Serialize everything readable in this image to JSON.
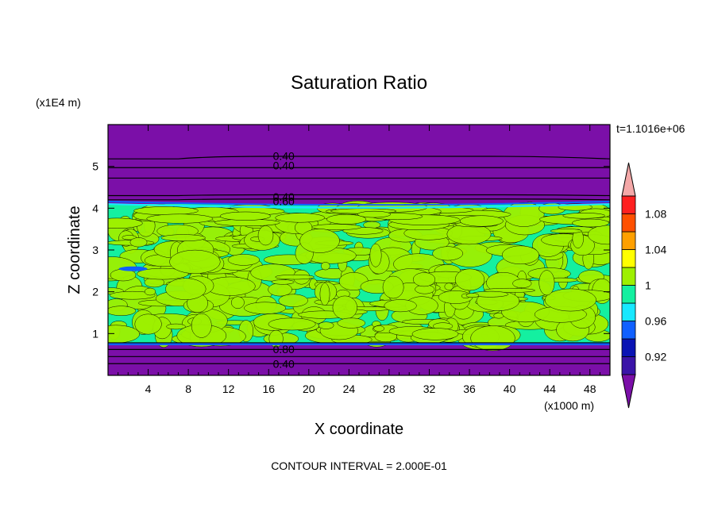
{
  "chart_data": {
    "type": "heatmap",
    "title": "Saturation Ratio",
    "xlabel": "X coordinate",
    "ylabel": "Z coordinate",
    "x_unit": "(x1000 m)",
    "y_unit": "(x1E4 m)",
    "time_label": "t=1.1016e+06",
    "footer": "CONTOUR INTERVAL = 2.000E-01",
    "xlim": [
      0,
      50
    ],
    "ylim": [
      0,
      6
    ],
    "x_ticks": [
      4,
      8,
      12,
      16,
      20,
      24,
      28,
      32,
      36,
      40,
      44,
      48
    ],
    "y_ticks": [
      1,
      2,
      3,
      4,
      5
    ],
    "colorbar": {
      "levels": [
        0.9,
        0.92,
        0.94,
        0.96,
        0.98,
        1.0,
        1.02,
        1.04,
        1.06,
        1.08,
        1.1
      ],
      "tick_labels": [
        "0.92",
        "0.96",
        "1",
        "1.04",
        "1.08"
      ],
      "colors": [
        "#7b0fa8",
        "#3a14a8",
        "#0a14b4",
        "#1060ff",
        "#18e8ff",
        "#14f0a0",
        "#9ef000",
        "#ffff00",
        "#ffa000",
        "#ff5000",
        "#ff2020",
        "#f4a8a8"
      ]
    },
    "regions": [
      {
        "z_range": [
          0,
          0.75
        ],
        "value": 0.5,
        "color": "#7b0fa8"
      },
      {
        "z_range": [
          0.75,
          4.1
        ],
        "value": 1.0,
        "color": "#14f0a0"
      },
      {
        "z_range": [
          4.1,
          6.0
        ],
        "value": 0.5,
        "color": "#7b0fa8"
      }
    ],
    "contour_labels": [
      {
        "text": "0.40",
        "x": 17.5,
        "z": 5.25
      },
      {
        "text": "0.40",
        "x": 17.5,
        "z": 5.02
      },
      {
        "text": "0.40",
        "x": 17.5,
        "z": 4.27
      },
      {
        "text": "0.60",
        "x": 17.5,
        "z": 4.17
      },
      {
        "text": "0.80",
        "x": 17.5,
        "z": 0.63
      },
      {
        "text": "0.40",
        "x": 17.5,
        "z": 0.28
      }
    ]
  }
}
